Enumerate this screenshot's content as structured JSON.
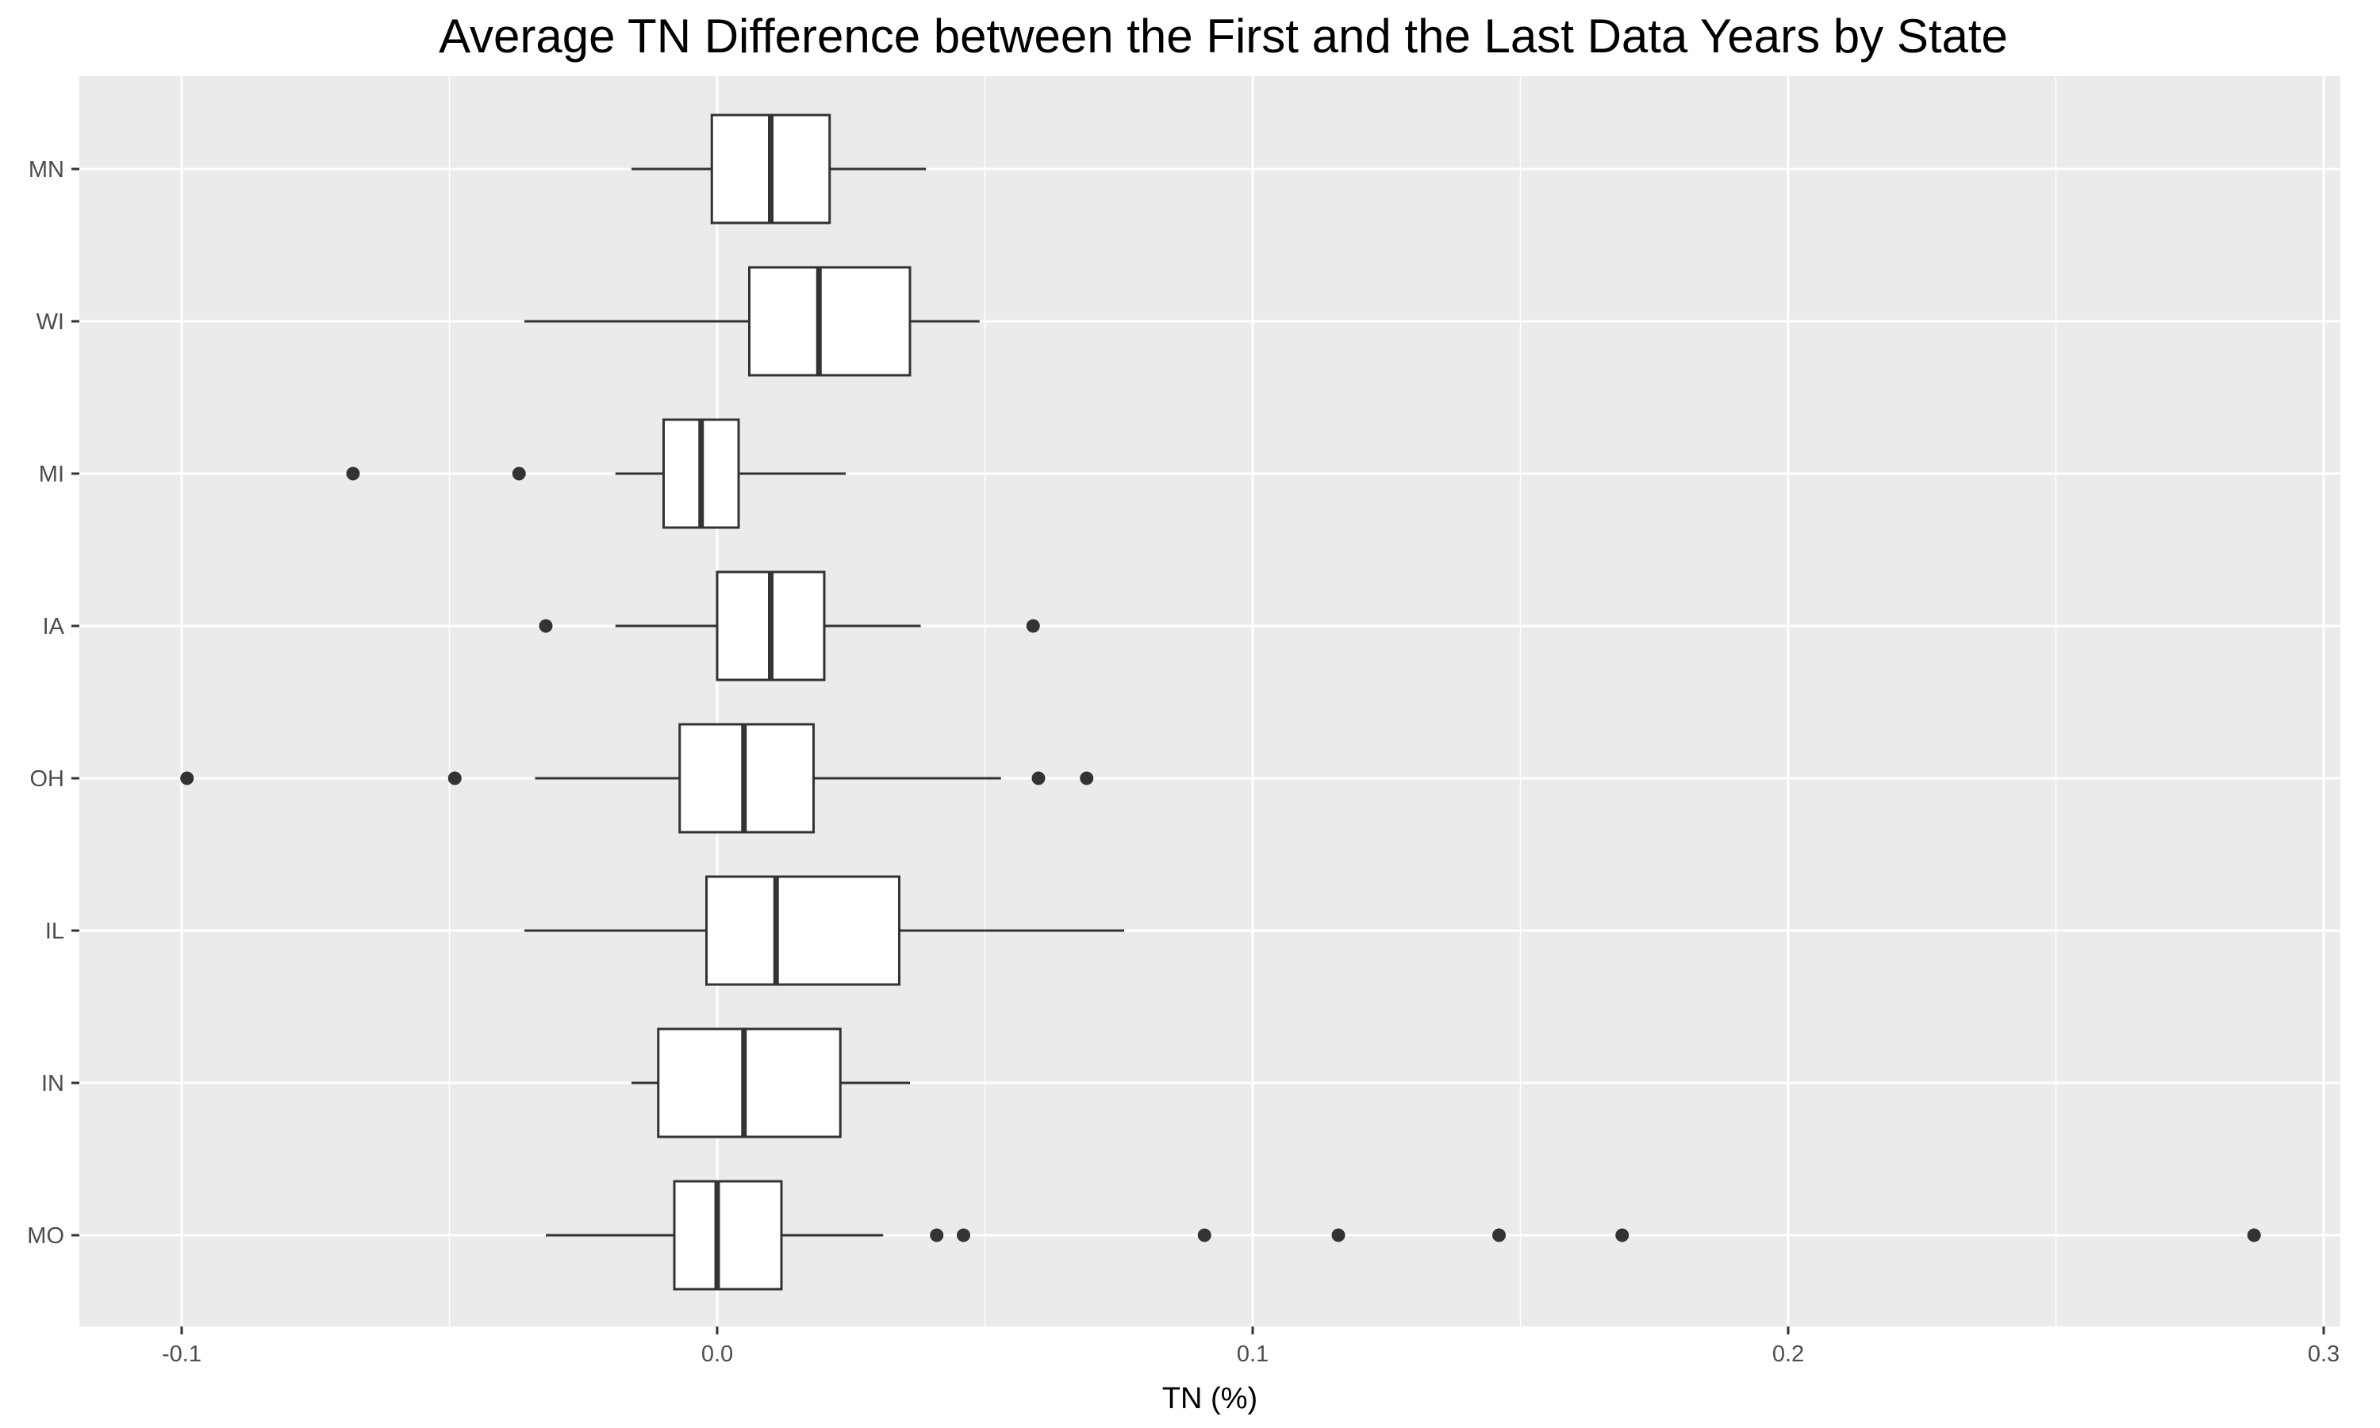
{
  "chart_data": {
    "type": "boxplot",
    "orientation": "horizontal",
    "title": "Average TN Difference between the First and the Last Data Years by State",
    "xlabel": "TN (%)",
    "ylabel": "",
    "xlim": [
      -0.12,
      0.3
    ],
    "xticks": [
      -0.1,
      0.0,
      0.1,
      0.2,
      0.3
    ],
    "xtick_labels": [
      "-0.1",
      "0.0",
      "0.1",
      "0.2",
      "0.3"
    ],
    "grid": true,
    "legend": "none",
    "colors": {
      "panel": "#ebebeb",
      "grid": "#ffffff",
      "box_fill": "#ffffff",
      "box_stroke": "#333333",
      "outlier": "#333333",
      "tick_text": "#4d4d4d"
    },
    "categories": [
      "MN",
      "WI",
      "MI",
      "IA",
      "OH",
      "IL",
      "IN",
      "MO"
    ],
    "boxes": [
      {
        "category": "MN",
        "whisker_low": -0.016,
        "q1": -0.001,
        "median": 0.01,
        "q3": 0.021,
        "whisker_high": 0.039,
        "outliers": []
      },
      {
        "category": "WI",
        "whisker_low": -0.036,
        "q1": 0.006,
        "median": 0.019,
        "q3": 0.036,
        "whisker_high": 0.049,
        "outliers": []
      },
      {
        "category": "MI",
        "whisker_low": -0.019,
        "q1": -0.01,
        "median": -0.003,
        "q3": 0.004,
        "whisker_high": 0.024,
        "outliers": [
          -0.068,
          -0.037
        ]
      },
      {
        "category": "IA",
        "whisker_low": -0.019,
        "q1": 0.0,
        "median": 0.01,
        "q3": 0.02,
        "whisker_high": 0.038,
        "outliers": [
          -0.032,
          0.059
        ]
      },
      {
        "category": "OH",
        "whisker_low": -0.034,
        "q1": -0.007,
        "median": 0.005,
        "q3": 0.018,
        "whisker_high": 0.053,
        "outliers": [
          -0.099,
          -0.049,
          0.06,
          0.069
        ]
      },
      {
        "category": "IL",
        "whisker_low": -0.036,
        "q1": -0.002,
        "median": 0.011,
        "q3": 0.034,
        "whisker_high": 0.076,
        "outliers": []
      },
      {
        "category": "IN",
        "whisker_low": -0.016,
        "q1": -0.011,
        "median": 0.005,
        "q3": 0.023,
        "whisker_high": 0.036,
        "outliers": []
      },
      {
        "category": "MO",
        "whisker_low": -0.032,
        "q1": -0.008,
        "median": 0.0,
        "q3": 0.012,
        "whisker_high": 0.031,
        "outliers": [
          0.041,
          0.046,
          0.091,
          0.116,
          0.146,
          0.169,
          0.287
        ]
      }
    ]
  }
}
